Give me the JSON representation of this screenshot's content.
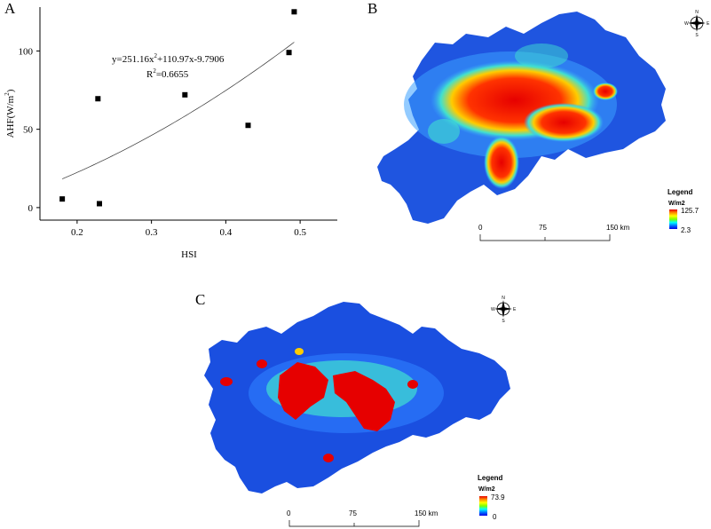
{
  "panels": {
    "a": "A",
    "b": "B",
    "c": "C"
  },
  "chart_data": {
    "type": "scatter",
    "xlabel": "HSI",
    "ylabel": "AHF(W/m",
    "ylabel_sup": "2",
    "ylabel_end": ")",
    "xlim": [
      0.15,
      0.55
    ],
    "ylim": [
      -8,
      128
    ],
    "xticks": [
      0.2,
      0.3,
      0.4,
      0.5
    ],
    "xtick_labels": [
      "0.2",
      "0.3",
      "0.4",
      "0.5"
    ],
    "yticks": [
      0,
      50,
      100
    ],
    "ytick_labels": [
      "0",
      "50",
      "100"
    ],
    "points": [
      {
        "x": 0.18,
        "y": 5.5
      },
      {
        "x": 0.228,
        "y": 69.5
      },
      {
        "x": 0.23,
        "y": 2.5
      },
      {
        "x": 0.345,
        "y": 72
      },
      {
        "x": 0.43,
        "y": 52.5
      },
      {
        "x": 0.485,
        "y": 99
      },
      {
        "x": 0.492,
        "y": 125
      }
    ],
    "fit": {
      "coefficients": [
        251.16,
        110.97,
        -9.7906
      ],
      "x_range": [
        0.18,
        0.492
      ]
    },
    "equation": {
      "part1": "y=251.16x",
      "sup": "2",
      "part2": "+110.97x-9.7906",
      "r2_label": "R",
      "r2_sup": "2",
      "r2_value": "=0.6655"
    }
  },
  "map_b": {
    "legend_title": "Legend",
    "unit": "W/m2",
    "max": "125.7",
    "min": "2.3",
    "scale": [
      "0",
      "75",
      "150 km"
    ]
  },
  "map_c": {
    "legend_title": "Legend",
    "unit": "W/m2",
    "max": "73.9",
    "min": "0",
    "scale": [
      "0",
      "75",
      "150 km"
    ]
  },
  "compass_labels": {
    "n": "N",
    "s": "S",
    "e": "E",
    "w": "W"
  },
  "colors": {
    "map_base": "#1a4fe0",
    "map_mid": "#3aa0ff",
    "map_cyan": "#40e0d0",
    "map_yellow": "#f0e000",
    "map_hot": "#e60000"
  }
}
